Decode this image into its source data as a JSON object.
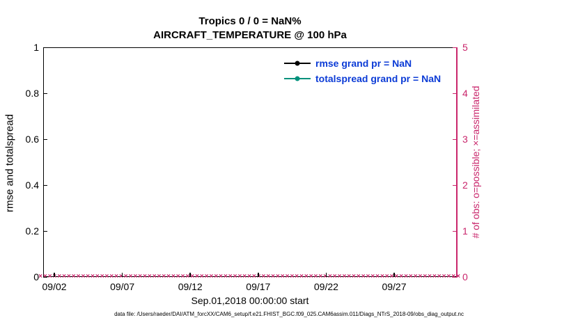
{
  "title": {
    "line1": "Tropics 0 / 0 = NaN%",
    "line2": "AIRCRAFT_TEMPERATURE @ 100 hPa"
  },
  "axes": {
    "left": {
      "label": "rmse and totalspread",
      "ticks": [
        "0",
        "0.2",
        "0.4",
        "0.6",
        "0.8",
        "1"
      ],
      "range": [
        0,
        1
      ]
    },
    "right": {
      "label": "# of obs: o=possible; ×=assimilated",
      "ticks": [
        "0",
        "1",
        "2",
        "3",
        "4",
        "5"
      ],
      "range": [
        0,
        5
      ],
      "color": "#c9256b"
    },
    "x": {
      "ticks": [
        "09/02",
        "09/07",
        "09/12",
        "09/17",
        "09/22",
        "09/27"
      ],
      "label": "Sep.01,2018 00:00:00 start"
    }
  },
  "legend": {
    "items": [
      {
        "label": "rmse grand pr = NaN",
        "color": "#000000"
      },
      {
        "label": "totalspread grand pr = NaN",
        "color": "#00917c"
      }
    ],
    "text_color": "#0b3bd6"
  },
  "footer": "data file: /Users/raeder/DAI/ATM_forcXX/CAM6_setup/f.e21.FHIST_BGC.f09_025.CAM6assim.011/Diags_NTrS_2018-09/obs_diag_output.nc",
  "chart_data": {
    "type": "line",
    "title": "Tropics 0 / 0 = NaN%  AIRCRAFT_TEMPERATURE @ 100 hPa",
    "xlabel": "Sep.01,2018 00:00:00 start",
    "ylabel_left": "rmse and totalspread",
    "ylabel_right": "# of obs: o=possible; ×=assimilated",
    "x_tick_labels": [
      "09/02",
      "09/07",
      "09/12",
      "09/17",
      "09/22",
      "09/27"
    ],
    "ylim_left": [
      0,
      1
    ],
    "ylim_right": [
      0,
      5
    ],
    "grid": false,
    "legend_position": "top-center-inside",
    "series": [
      {
        "name": "rmse grand pr = NaN",
        "axis": "left",
        "values": "all NaN (no data plotted)"
      },
      {
        "name": "totalspread grand pr = NaN",
        "axis": "left",
        "values": "all NaN (no data plotted)"
      },
      {
        "name": "obs assimilated (×)",
        "axis": "right",
        "values": "0 at every time step across full range"
      },
      {
        "name": "obs possible (o)",
        "axis": "right",
        "values": "0 at every time step across full range"
      }
    ],
    "obs_marker_count": 89
  }
}
